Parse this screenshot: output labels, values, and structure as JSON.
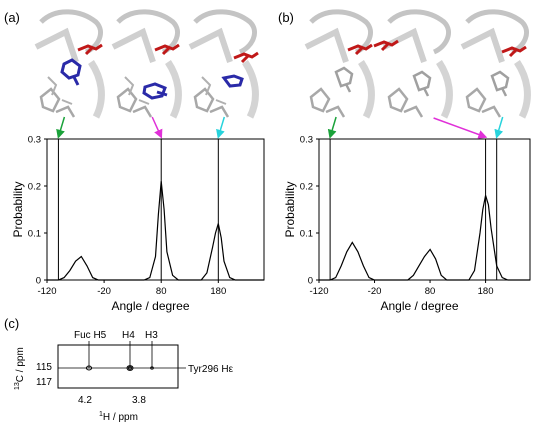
{
  "panels": {
    "a": {
      "label": "(a)"
    },
    "b": {
      "label": "(b)"
    },
    "c": {
      "label": "(c)"
    }
  },
  "structures": {
    "note": "",
    "colors": {
      "ribbon": "#bdbdbd",
      "sticks": "#a8a8a8",
      "red_residue": "#c01818",
      "blue_residue": "#2a2aa8"
    }
  },
  "arrows": {
    "colors": {
      "green": "#1aa23a",
      "magenta": "#e030d8",
      "cyan": "#27d3dc"
    }
  },
  "chart_data": [
    {
      "panel": "a",
      "type": "line",
      "ylabel": "Probability",
      "xlabel": "Angle / degree",
      "xlim": [
        -120,
        260
      ],
      "ylim": [
        0,
        0.3
      ],
      "xticks": [
        -120,
        -20,
        80,
        180
      ],
      "yticks": [
        0,
        0.1,
        0.2,
        0.3
      ],
      "vertical_lines": [
        -100,
        80,
        180
      ],
      "x": [
        -120,
        -110,
        -100,
        -90,
        -80,
        -70,
        -60,
        -50,
        -40,
        -30,
        -20,
        -10,
        0,
        10,
        20,
        30,
        40,
        50,
        60,
        70,
        75,
        80,
        85,
        90,
        100,
        110,
        120,
        130,
        140,
        150,
        160,
        170,
        175,
        180,
        185,
        190,
        200,
        210,
        220,
        230,
        240,
        250,
        260
      ],
      "y": [
        0,
        0,
        0,
        0.005,
        0.02,
        0.04,
        0.05,
        0.03,
        0.005,
        0,
        0,
        0,
        0,
        0,
        0,
        0,
        0,
        0,
        0.005,
        0.05,
        0.14,
        0.21,
        0.15,
        0.06,
        0.01,
        0,
        0,
        0,
        0,
        0,
        0.015,
        0.07,
        0.1,
        0.12,
        0.09,
        0.04,
        0.005,
        0,
        0,
        0,
        0,
        0,
        0
      ],
      "arrows": [
        {
          "color": "green",
          "target_x": -100
        },
        {
          "color": "magenta",
          "target_x": 80
        },
        {
          "color": "cyan",
          "target_x": 180
        }
      ]
    },
    {
      "panel": "b",
      "type": "line",
      "ylabel": "Probability",
      "xlabel": "Angle / degree",
      "xlim": [
        -120,
        260
      ],
      "ylim": [
        0,
        0.3
      ],
      "xticks": [
        -120,
        -20,
        80,
        180
      ],
      "yticks": [
        0,
        0.1,
        0.2,
        0.3
      ],
      "vertical_lines": [
        -100,
        180,
        200
      ],
      "x": [
        -120,
        -110,
        -100,
        -90,
        -80,
        -70,
        -60,
        -50,
        -40,
        -30,
        -20,
        -10,
        0,
        10,
        20,
        30,
        40,
        50,
        60,
        70,
        80,
        90,
        100,
        110,
        120,
        130,
        140,
        150,
        160,
        170,
        175,
        180,
        185,
        190,
        200,
        210,
        220,
        230,
        240,
        250,
        260
      ],
      "y": [
        0,
        0,
        0,
        0.005,
        0.03,
        0.06,
        0.08,
        0.06,
        0.03,
        0.005,
        0,
        0,
        0,
        0,
        0,
        0,
        0,
        0.01,
        0.03,
        0.05,
        0.065,
        0.045,
        0.01,
        0,
        0,
        0,
        0,
        0,
        0.02,
        0.1,
        0.15,
        0.18,
        0.16,
        0.11,
        0.03,
        0.005,
        0,
        0,
        0,
        0,
        0
      ],
      "arrows": [
        {
          "color": "green",
          "target_x": -100
        },
        {
          "color": "magenta",
          "target_x": 180
        },
        {
          "color": "cyan",
          "target_x": 200
        }
      ]
    }
  ],
  "nmr": {
    "top_labels": [
      "Fuc H5",
      "H4",
      "H3"
    ],
    "y_axis_label_sup": "13",
    "y_axis_label_main": "C / ppm",
    "y_ticks": [
      "115",
      "117"
    ],
    "x_ticks": [
      "4.2",
      "3.8"
    ],
    "x_axis_label_sup": "1",
    "x_axis_label_main": "H / ppm",
    "right_label": "Tyr296 Hε"
  }
}
